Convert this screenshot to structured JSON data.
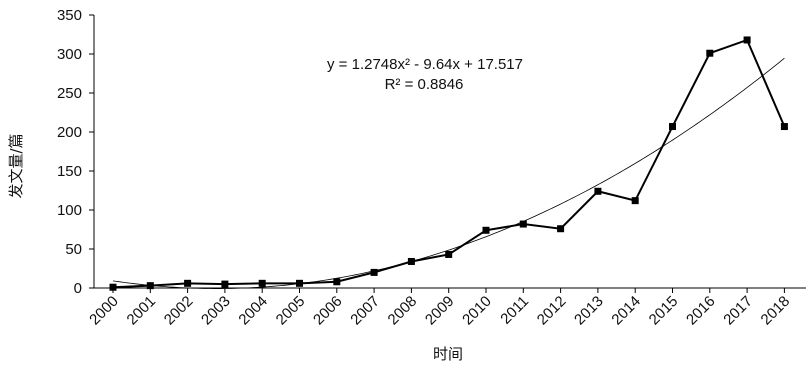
{
  "chart_data": {
    "type": "line",
    "title": "",
    "xlabel": "时间",
    "ylabel": "发文量/篇",
    "ylim": [
      0,
      350
    ],
    "yticks": [
      "0",
      "50",
      "100",
      "150",
      "200",
      "250",
      "300",
      "350"
    ],
    "categories": [
      "2000",
      "2001",
      "2002",
      "2003",
      "2004",
      "2005",
      "2006",
      "2007",
      "2008",
      "2009",
      "2010",
      "2011",
      "2012",
      "2013",
      "2014",
      "2015",
      "2016",
      "2017",
      "2018"
    ],
    "series": [
      {
        "values": [
          1,
          3,
          6,
          5,
          6,
          6,
          8,
          20,
          34,
          43,
          74,
          82,
          76,
          124,
          112,
          207,
          301,
          318,
          207
        ],
        "marker": "square",
        "color": "#000000"
      }
    ],
    "trendline": {
      "kind": "polynomial-2",
      "coefficients": [
        1.2748,
        -9.64,
        17.517
      ],
      "color": "#000000"
    },
    "annotations": {
      "equation": "y = 1.2748x² - 9.64x + 17.517",
      "r_squared": "R² = 0.8846"
    },
    "grid": false,
    "legend": "none"
  }
}
